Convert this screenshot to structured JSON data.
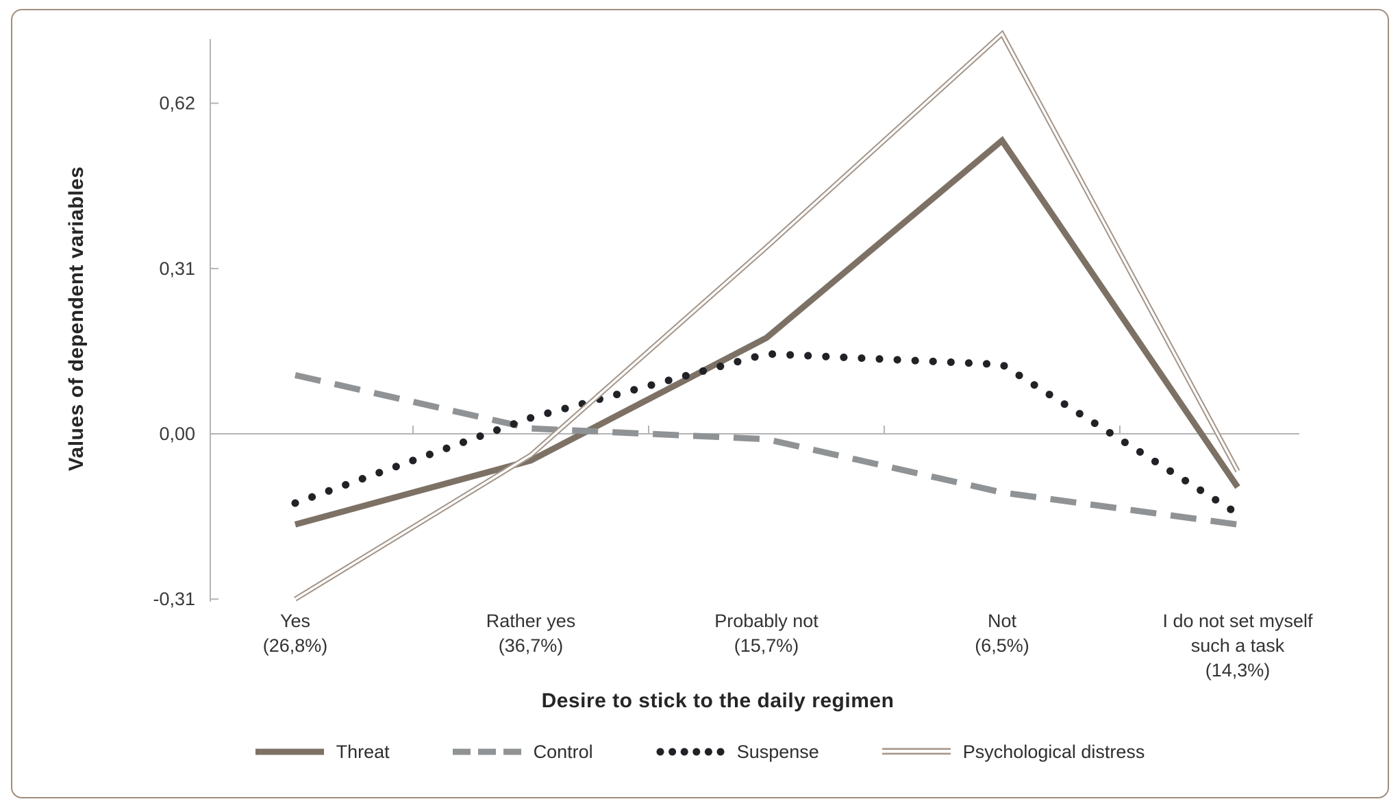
{
  "figure": {
    "background": "#ffffff",
    "border_color": "#a08e7d"
  },
  "chart_data": {
    "type": "line",
    "title": "",
    "xlabel": "Desire to stick to the daily regimen",
    "ylabel": "Values of dependent variables",
    "ylim": [
      -0.38,
      0.78
    ],
    "grid": "zero-line-only",
    "legend_position": "bottom",
    "axis_color": "#b4b4b4",
    "categories": [
      {
        "lines": [
          "Yes",
          "(26,8%)"
        ]
      },
      {
        "lines": [
          "Rather yes",
          "(36,7%)"
        ]
      },
      {
        "lines": [
          "Probably not",
          "(15,7%)"
        ]
      },
      {
        "lines": [
          "Not",
          "(6,5%)"
        ]
      },
      {
        "lines": [
          "I do not set myself",
          "such a task",
          "(14,3%)"
        ]
      }
    ],
    "yticks": [
      {
        "value": 0.62,
        "label": "0,62"
      },
      {
        "value": 0.31,
        "label": "0,31"
      },
      {
        "value": 0.0,
        "label": "0,00"
      },
      {
        "value": -0.31,
        "label": "-0,31"
      }
    ],
    "series": [
      {
        "name": "Threat",
        "style": "solid-thick",
        "color": "#7d7165",
        "values": [
          -0.17,
          -0.05,
          0.18,
          0.55,
          -0.1
        ]
      },
      {
        "name": "Control",
        "style": "dashed",
        "color": "#909395",
        "values": [
          0.11,
          0.01,
          -0.01,
          -0.11,
          -0.17
        ]
      },
      {
        "name": "Suspense",
        "style": "dotted",
        "color": "#202226",
        "values": [
          -0.13,
          0.03,
          0.15,
          0.13,
          -0.15
        ]
      },
      {
        "name": "Psychological distress",
        "style": "double",
        "color": "#a5968a",
        "values": [
          -0.31,
          -0.04,
          0.35,
          0.75,
          -0.07
        ]
      }
    ]
  }
}
